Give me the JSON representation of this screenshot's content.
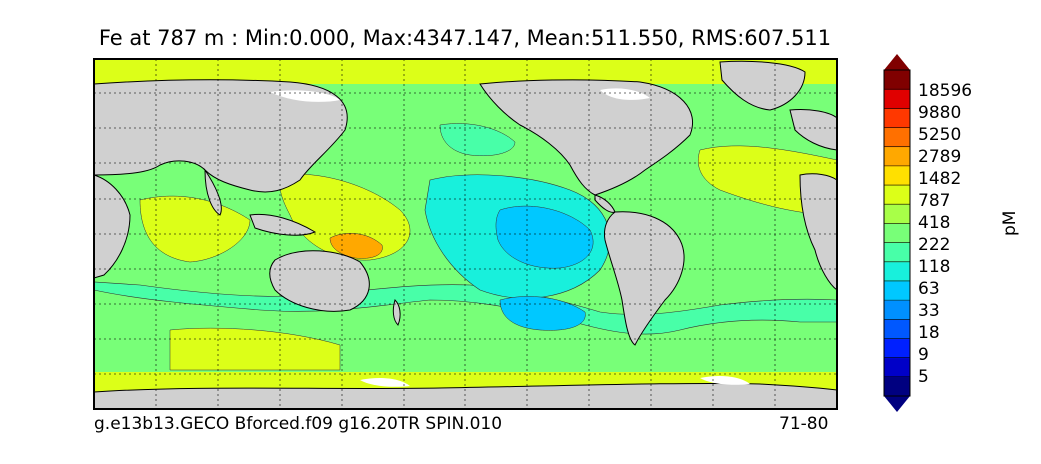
{
  "figure": {
    "title": "Fe at 787 m : Min:0.000, Max:4347.147, Mean:511.550, RMS:607.511",
    "caption_left": "g.e13b13.GECO Bforced.f09 g16.20TR SPIN.010",
    "caption_right": "71-80"
  },
  "colorbar": {
    "units": "pM",
    "extend": "both",
    "colors": [
      "#000080",
      "#0000c8",
      "#0020ff",
      "#0058ff",
      "#0090ff",
      "#00c8ff",
      "#18f0dc",
      "#48ffa8",
      "#78ff78",
      "#a8ff48",
      "#dcff18",
      "#ffe000",
      "#ffa800",
      "#ff7000",
      "#ff3800",
      "#e00000",
      "#800000"
    ],
    "labels": [
      "18596",
      "9880",
      "5250",
      "2789",
      "1482",
      "787",
      "418",
      "222",
      "118",
      "63",
      "33",
      "18",
      "9",
      "5"
    ]
  },
  "map": {
    "projection": "global cylindrical (Pacific-centered)",
    "land_color": "#d0d0d0",
    "grid": "dashed graticule"
  }
}
